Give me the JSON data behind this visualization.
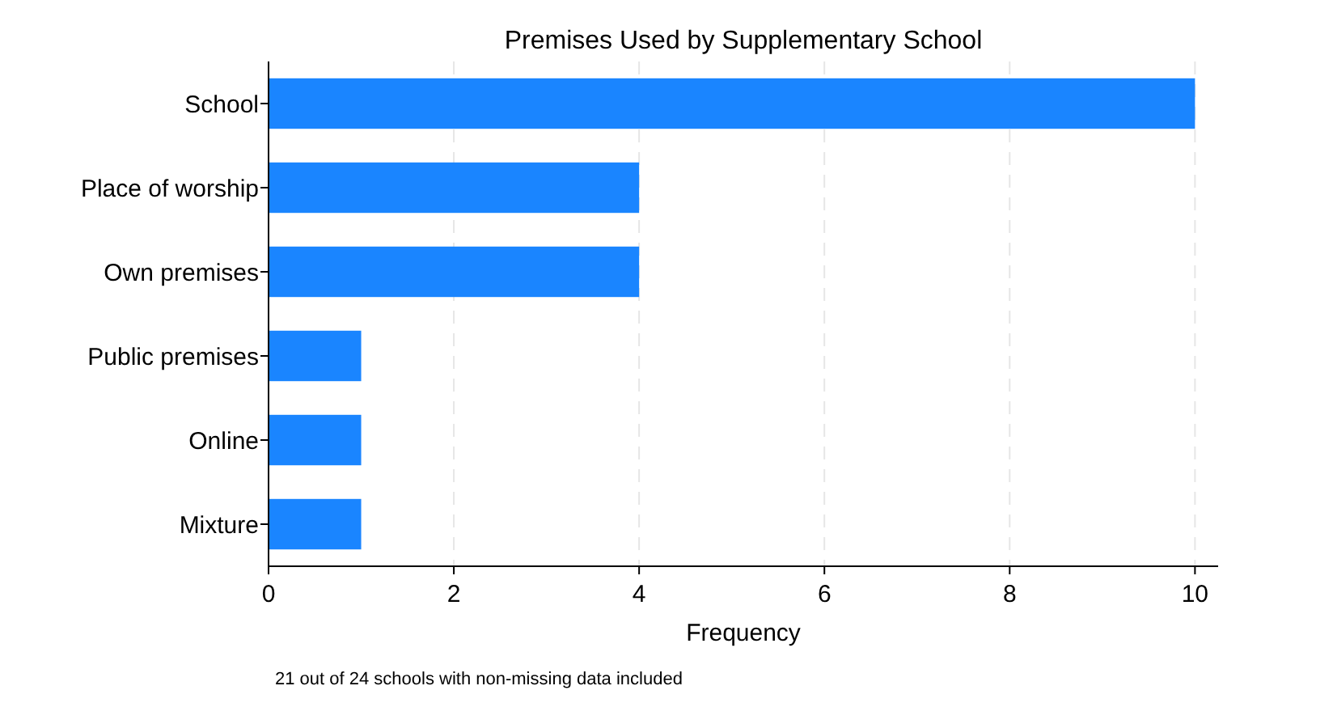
{
  "chart_data": {
    "type": "bar",
    "orientation": "horizontal",
    "title": "Premises Used by Supplementary School",
    "xlabel": "Frequency",
    "categories": [
      "School",
      "Place of worship",
      "Own premises",
      "Public premises",
      "Online",
      "Mixture"
    ],
    "values": [
      10,
      4,
      4,
      1,
      1,
      1
    ],
    "color": "#1a85ff",
    "xlim": [
      0,
      10.25
    ],
    "xticks": [
      0,
      2,
      4,
      6,
      8,
      10
    ],
    "grid": "x",
    "annotations": [
      "21 out of 24 schools with non-missing data included"
    ]
  }
}
